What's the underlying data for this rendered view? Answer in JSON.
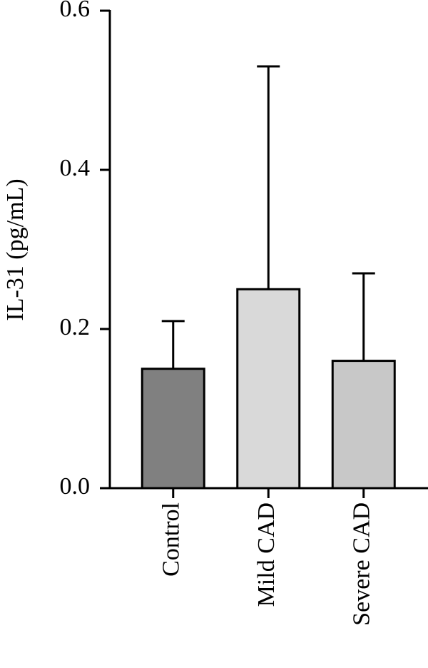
{
  "chart_data": {
    "type": "bar",
    "y_label": "IL-31 (pg/mL)",
    "categories": [
      "Control",
      "Mild CAD",
      "Severe CAD"
    ],
    "values": [
      0.15,
      0.25,
      0.16
    ],
    "errors": [
      0.06,
      0.28,
      0.11
    ],
    "colors": [
      "#808080",
      "#d9d9d9",
      "#c8c8c8"
    ],
    "ylim": [
      0,
      0.6
    ],
    "yticks": [
      {
        "value": 0,
        "label": "0.0"
      },
      0.2,
      0.4,
      0.6
    ]
  }
}
